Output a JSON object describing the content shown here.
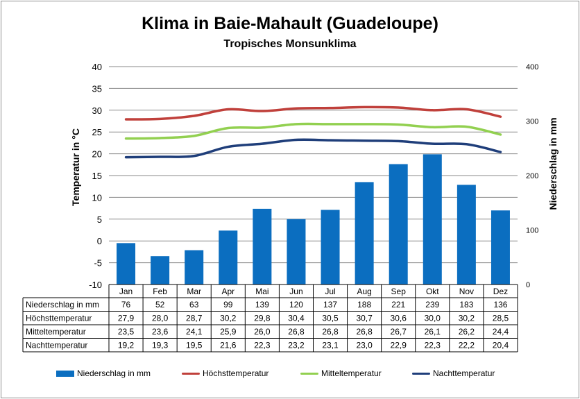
{
  "title": "Klima in Baie-Mahault (Guadeloupe)",
  "subtitle": "Tropisches Monsunklima",
  "chart_data": {
    "type": "bar+line",
    "categories": [
      "Jan",
      "Feb",
      "Mar",
      "Apr",
      "Mai",
      "Jun",
      "Jul",
      "Aug",
      "Sep",
      "Okt",
      "Nov",
      "Dez"
    ],
    "ylabel_left": "Temperatur in °C",
    "ylabel_right": "Niederschlag in mm",
    "ylim_left": [
      -10,
      40
    ],
    "ylim_right": [
      0,
      400
    ],
    "yticks_left": [
      "40",
      "35",
      "30",
      "25",
      "20",
      "15",
      "10",
      "5",
      "0",
      "-5",
      "-10"
    ],
    "yticks_right": [
      "400",
      "300",
      "200",
      "100",
      "0"
    ],
    "grid": true,
    "legend_position": "bottom",
    "series": [
      {
        "name": "Niederschlag in mm",
        "type": "bar",
        "axis": "right",
        "color": "#0b6ec0",
        "values": [
          "76",
          "52",
          "63",
          "99",
          "139",
          "120",
          "137",
          "188",
          "221",
          "239",
          "183",
          "136"
        ]
      },
      {
        "name": "Höchsttemperatur",
        "type": "line",
        "axis": "left",
        "color": "#c0403b",
        "values": [
          "27,9",
          "28,0",
          "28,7",
          "30,2",
          "29,8",
          "30,4",
          "30,5",
          "30,7",
          "30,6",
          "30,0",
          "30,2",
          "28,5"
        ]
      },
      {
        "name": "Mitteltemperatur",
        "type": "line",
        "axis": "left",
        "color": "#92d050",
        "values": [
          "23,5",
          "23,6",
          "24,1",
          "25,9",
          "26,0",
          "26,8",
          "26,8",
          "26,8",
          "26,7",
          "26,1",
          "26,2",
          "24,4"
        ]
      },
      {
        "name": "Nachttemperatur",
        "type": "line",
        "axis": "left",
        "color": "#1f3e7a",
        "values": [
          "19,2",
          "19,3",
          "19,5",
          "21,6",
          "22,3",
          "23,2",
          "23,1",
          "23,0",
          "22,9",
          "22,3",
          "22,2",
          "20,4"
        ]
      }
    ]
  }
}
